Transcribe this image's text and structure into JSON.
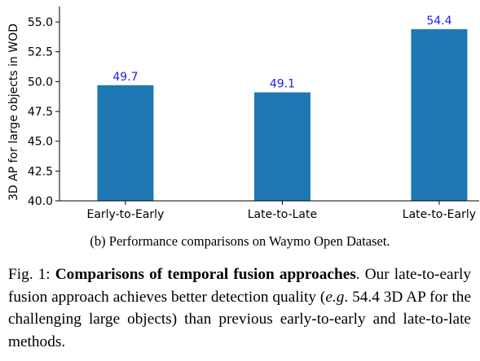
{
  "chart_data": {
    "type": "bar",
    "categories": [
      "Early-to-Early",
      "Late-to-Late",
      "Late-to-Early"
    ],
    "values": [
      49.7,
      49.1,
      54.4
    ],
    "value_labels": [
      "49.7",
      "49.1",
      "54.4"
    ],
    "ylabel": "3D AP for large objects in WOD",
    "xlabel": "",
    "ylim": [
      40.0,
      56.3
    ],
    "yticks": [
      "40.0",
      "42.5",
      "45.0",
      "47.5",
      "50.0",
      "52.5",
      "55.0"
    ],
    "ytick_values": [
      40.0,
      42.5,
      45.0,
      47.5,
      50.0,
      52.5,
      55.0
    ],
    "bar_color": "#1f77b4",
    "label_color": "#1f1fe6",
    "grid": false
  },
  "subcaption": "(b) Performance comparisons on Waymo Open Dataset.",
  "caption": {
    "prefix": "Fig. 1: ",
    "title": "Comparisons of temporal fusion approaches",
    "after_title": ". Our late-to-early fusion approach achieves better detection quality (",
    "eg": "e.g",
    "rest": ". 54.4 3D AP for the challenging large objects) than previous early-to-early and late-to-late methods."
  }
}
